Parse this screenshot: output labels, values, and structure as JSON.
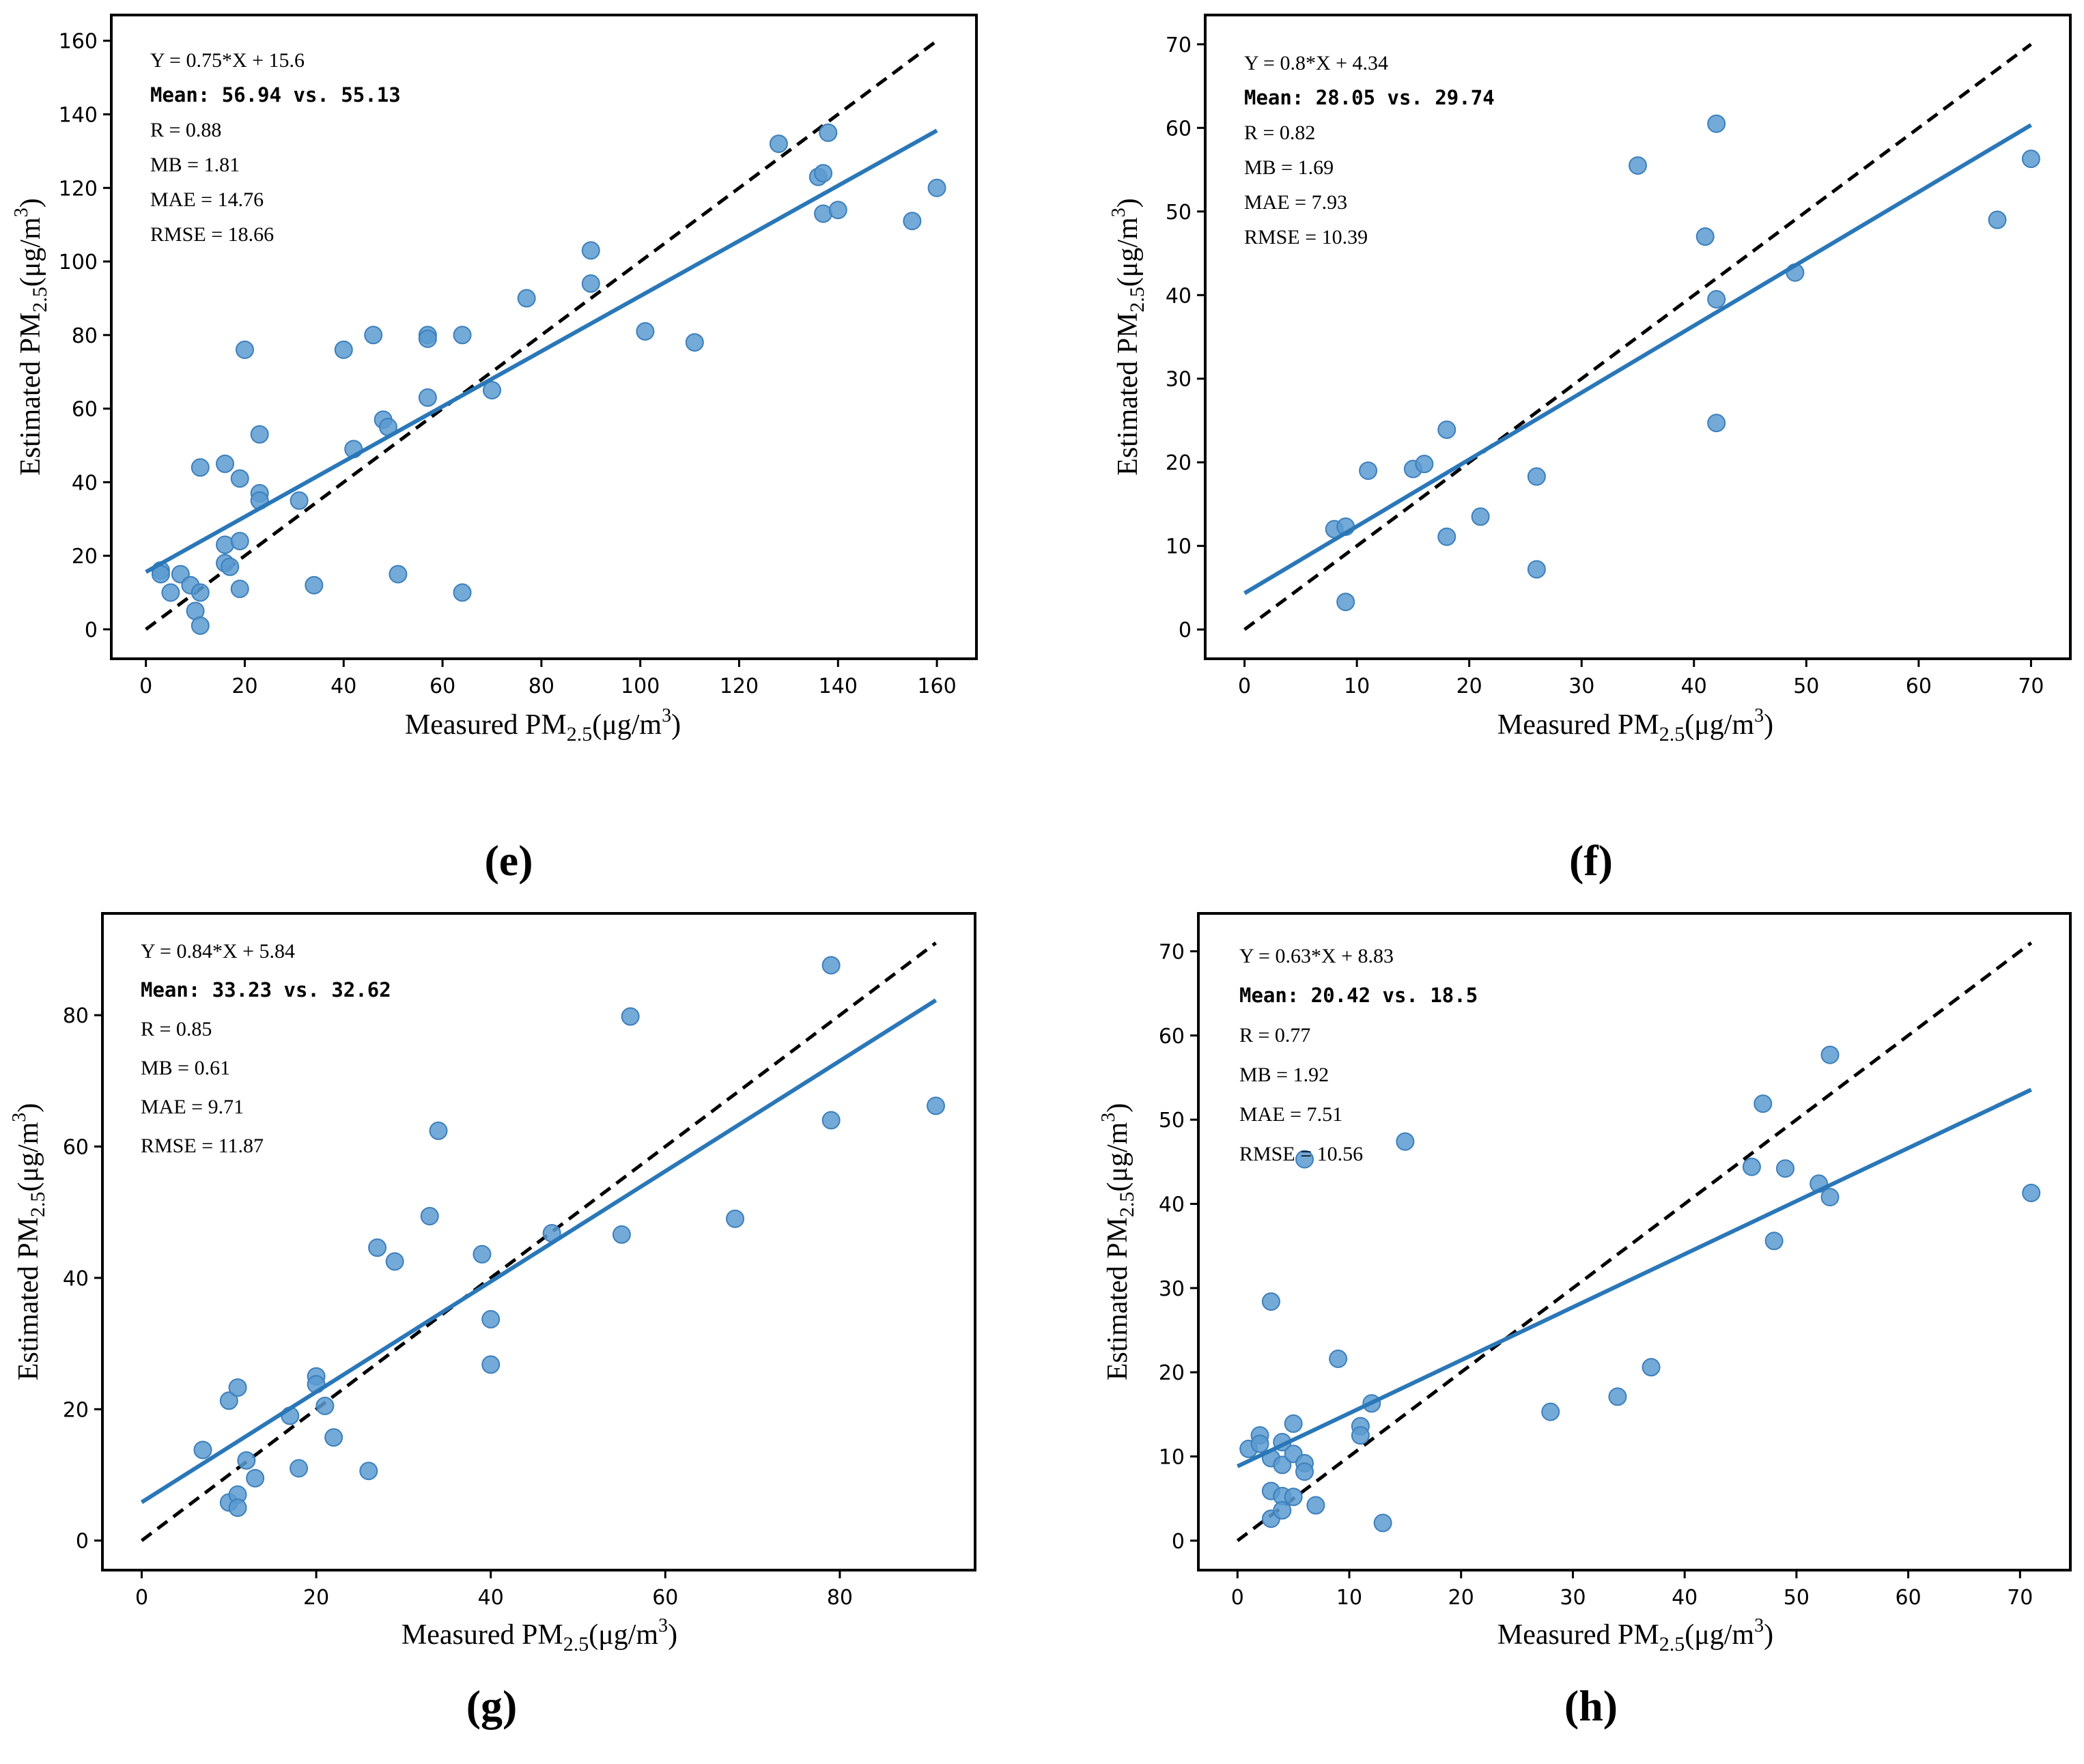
{
  "chart_data": [
    {
      "type": "scatter",
      "panel_label": "(e)",
      "xlabel": "Measured PM",
      "ylabel": "Estimated PM",
      "subscript": "2.5",
      "unit_prefix": "(μg/m",
      "unit_power": "3",
      "unit_suffix": ")",
      "xlim": [
        -7,
        168
      ],
      "ylim": [
        -8,
        167
      ],
      "xticks": [
        0,
        20,
        40,
        60,
        80,
        100,
        120,
        140,
        160
      ],
      "yticks": [
        0,
        20,
        40,
        60,
        80,
        100,
        120,
        140,
        160
      ],
      "grid": false,
      "fit": {
        "slope": 0.75,
        "intercept": 15.6,
        "x_range": [
          0,
          160
        ]
      },
      "reference_line": {
        "x_range": [
          0,
          160
        ]
      },
      "stats": [
        {
          "text": "Y = 0.75*X + 15.6",
          "style": "serif"
        },
        {
          "text": "Mean: 56.94 vs. 55.13",
          "style": "mono"
        },
        {
          "text": "R = 0.88",
          "style": "serif"
        },
        {
          "text": "MB = 1.81",
          "style": "serif"
        },
        {
          "text": "MAE = 14.76",
          "style": "serif"
        },
        {
          "text": "RMSE = 18.66",
          "style": "serif"
        }
      ],
      "points": [
        [
          3,
          16
        ],
        [
          3,
          15
        ],
        [
          5,
          10
        ],
        [
          7,
          15
        ],
        [
          9,
          12
        ],
        [
          10,
          5
        ],
        [
          11,
          1
        ],
        [
          11,
          44
        ],
        [
          11,
          10
        ],
        [
          16,
          18
        ],
        [
          16,
          23
        ],
        [
          16,
          45
        ],
        [
          17,
          17
        ],
        [
          19,
          41
        ],
        [
          19,
          24
        ],
        [
          19,
          11
        ],
        [
          20,
          76
        ],
        [
          23,
          37
        ],
        [
          23,
          35
        ],
        [
          23,
          53
        ],
        [
          31,
          35
        ],
        [
          34,
          12
        ],
        [
          40,
          76
        ],
        [
          42,
          49
        ],
        [
          46,
          80
        ],
        [
          48,
          57
        ],
        [
          49,
          55
        ],
        [
          51,
          15
        ],
        [
          57,
          80
        ],
        [
          57,
          79
        ],
        [
          57,
          63
        ],
        [
          64,
          80
        ],
        [
          64,
          10
        ],
        [
          70,
          65
        ],
        [
          77,
          90
        ],
        [
          90,
          103
        ],
        [
          90,
          94
        ],
        [
          101,
          81
        ],
        [
          111,
          78
        ],
        [
          128,
          132
        ],
        [
          136,
          123
        ],
        [
          137,
          124
        ],
        [
          137,
          113
        ],
        [
          138,
          135
        ],
        [
          140,
          114
        ],
        [
          155,
          111
        ],
        [
          160,
          120
        ]
      ]
    },
    {
      "type": "scatter",
      "panel_label": "(f)",
      "xlabel": "Measured PM",
      "ylabel": "Estimated PM",
      "subscript": "2.5",
      "unit_prefix": "(μg/m",
      "unit_power": "3",
      "unit_suffix": ")",
      "xlim": [
        -3.5,
        73.5
      ],
      "ylim": [
        -3.5,
        73.5
      ],
      "xticks": [
        0,
        10,
        20,
        30,
        40,
        50,
        60,
        70
      ],
      "yticks": [
        0,
        10,
        20,
        30,
        40,
        50,
        60,
        70
      ],
      "grid": false,
      "fit": {
        "slope": 0.8,
        "intercept": 4.34,
        "x_range": [
          0,
          70
        ]
      },
      "reference_line": {
        "x_range": [
          0,
          70
        ]
      },
      "stats": [
        {
          "text": "Y = 0.8*X + 4.34",
          "style": "serif"
        },
        {
          "text": "Mean: 28.05 vs. 29.74",
          "style": "mono"
        },
        {
          "text": "R = 0.82",
          "style": "serif"
        },
        {
          "text": "MB = 1.69",
          "style": "serif"
        },
        {
          "text": "MAE = 7.93",
          "style": "serif"
        },
        {
          "text": "RMSE = 10.39",
          "style": "serif"
        }
      ],
      "points": [
        [
          8,
          12
        ],
        [
          9,
          12.3
        ],
        [
          9,
          3.3
        ],
        [
          11,
          19
        ],
        [
          15,
          19.2
        ],
        [
          16,
          19.8
        ],
        [
          18,
          23.9
        ],
        [
          18,
          11.1
        ],
        [
          21,
          13.5
        ],
        [
          26,
          18.3
        ],
        [
          26,
          7.2
        ],
        [
          35,
          55.5
        ],
        [
          41,
          47
        ],
        [
          42,
          60.5
        ],
        [
          42,
          39.5
        ],
        [
          42,
          24.7
        ],
        [
          49,
          42.7
        ],
        [
          67,
          49
        ],
        [
          70,
          56.3
        ]
      ]
    },
    {
      "type": "scatter",
      "panel_label": "(g)",
      "xlabel": "Measured PM",
      "ylabel": "Estimated PM",
      "subscript": "2.5",
      "unit_prefix": "(μg/m",
      "unit_power": "3",
      "unit_suffix": ")",
      "xlim": [
        -4.5,
        95.5
      ],
      "ylim": [
        -4.5,
        95.5
      ],
      "xticks": [
        0,
        20,
        40,
        60,
        80
      ],
      "yticks": [
        0,
        20,
        40,
        60,
        80
      ],
      "grid": false,
      "fit": {
        "slope": 0.84,
        "intercept": 5.84,
        "x_range": [
          0,
          91
        ]
      },
      "reference_line": {
        "x_range": [
          0,
          91
        ]
      },
      "stats": [
        {
          "text": "Y = 0.84*X + 5.84",
          "style": "serif"
        },
        {
          "text": "Mean: 33.23 vs. 32.62",
          "style": "mono"
        },
        {
          "text": "R = 0.85",
          "style": "serif"
        },
        {
          "text": "MB = 0.61",
          "style": "serif"
        },
        {
          "text": "MAE = 9.71",
          "style": "serif"
        },
        {
          "text": "RMSE = 11.87",
          "style": "serif"
        }
      ],
      "points": [
        [
          7,
          13.8
        ],
        [
          10,
          21.3
        ],
        [
          10,
          5.8
        ],
        [
          11,
          23.3
        ],
        [
          11,
          7
        ],
        [
          11,
          5
        ],
        [
          12,
          12.2
        ],
        [
          13,
          9.5
        ],
        [
          17,
          19
        ],
        [
          18,
          11
        ],
        [
          20,
          25
        ],
        [
          20,
          23.8
        ],
        [
          21,
          20.5
        ],
        [
          22,
          15.7
        ],
        [
          26,
          10.6
        ],
        [
          27,
          44.6
        ],
        [
          29,
          42.5
        ],
        [
          33,
          49.4
        ],
        [
          34,
          62.4
        ],
        [
          39,
          43.6
        ],
        [
          40,
          33.7
        ],
        [
          40,
          26.8
        ],
        [
          47,
          46.8
        ],
        [
          55,
          46.6
        ],
        [
          56,
          79.8
        ],
        [
          68,
          49
        ],
        [
          79,
          87.6
        ],
        [
          79,
          64
        ],
        [
          91,
          66.2
        ]
      ]
    },
    {
      "type": "scatter",
      "panel_label": "(h)",
      "xlabel": "Measured PM",
      "ylabel": "Estimated PM",
      "subscript": "2.5",
      "unit_prefix": "(μg/m",
      "unit_power": "3",
      "unit_suffix": ")",
      "xlim": [
        -3.5,
        74.5
      ],
      "ylim": [
        -3.5,
        74.5
      ],
      "xticks": [
        0,
        10,
        20,
        30,
        40,
        50,
        60,
        70
      ],
      "yticks": [
        0,
        10,
        20,
        30,
        40,
        50,
        60,
        70
      ],
      "grid": false,
      "fit": {
        "slope": 0.63,
        "intercept": 8.83,
        "x_range": [
          0,
          71
        ]
      },
      "reference_line": {
        "x_range": [
          0,
          71
        ]
      },
      "stats": [
        {
          "text": "Y = 0.63*X + 8.83",
          "style": "serif"
        },
        {
          "text": "Mean: 20.42 vs. 18.5",
          "style": "mono"
        },
        {
          "text": "R = 0.77",
          "style": "serif"
        },
        {
          "text": "MB = 1.92",
          "style": "serif"
        },
        {
          "text": "MAE = 7.51",
          "style": "serif"
        },
        {
          "text": "RMSE = 10.56",
          "style": "serif"
        }
      ],
      "points": [
        [
          1,
          10.9
        ],
        [
          2,
          12.5
        ],
        [
          2,
          11.5
        ],
        [
          3,
          28.4
        ],
        [
          3,
          9.8
        ],
        [
          3,
          5.9
        ],
        [
          3,
          2.6
        ],
        [
          4,
          11.7
        ],
        [
          4,
          9
        ],
        [
          4,
          5.3
        ],
        [
          4,
          3.6
        ],
        [
          5,
          13.9
        ],
        [
          5,
          10.3
        ],
        [
          5,
          5.2
        ],
        [
          6,
          45.3
        ],
        [
          6,
          9.2
        ],
        [
          6,
          8.2
        ],
        [
          7,
          4.2
        ],
        [
          9,
          21.6
        ],
        [
          11,
          13.6
        ],
        [
          11,
          12.5
        ],
        [
          12,
          16.3
        ],
        [
          13,
          2.1
        ],
        [
          15,
          47.4
        ],
        [
          28,
          15.3
        ],
        [
          34,
          17.1
        ],
        [
          37,
          20.6
        ],
        [
          46,
          44.4
        ],
        [
          47,
          51.9
        ],
        [
          48,
          35.6
        ],
        [
          49,
          44.2
        ],
        [
          52,
          42.4
        ],
        [
          53,
          57.7
        ],
        [
          53,
          40.8
        ],
        [
          71,
          41.3
        ]
      ]
    }
  ],
  "colors": {
    "point_fill": "#5b9bd1",
    "point_stroke": "#3d7fbb",
    "fit_line": "#2a77b8",
    "reference_line": "#000000"
  }
}
